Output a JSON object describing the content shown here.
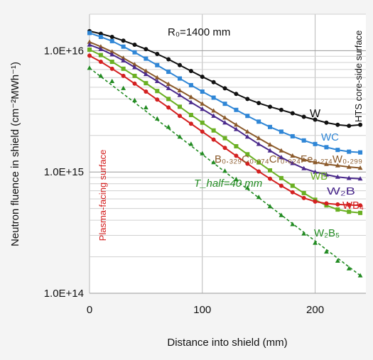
{
  "chart_data": {
    "type": "line",
    "xlabel": "Distance into shield (mm)",
    "ylabel": "Neutron fluence in shield (cm⁻²MWh⁻¹)",
    "xlim": [
      0,
      245
    ],
    "ylim": [
      100000000000000.0,
      2e+16
    ],
    "yscale": "log",
    "x_ticks": [
      0,
      100,
      200
    ],
    "y_ticks": [
      "1.0E+14",
      "1.0E+15",
      "1.0E+16"
    ],
    "grid": true,
    "annotations": {
      "radius_label": "R₀=1400 mm",
      "core_side_label": "HTS core-side surface",
      "plasma_side_label": "Plasma-facing surface",
      "thalf_label": "T_half=40 mm"
    },
    "x": [
      0,
      10,
      20,
      30,
      40,
      50,
      60,
      70,
      80,
      90,
      100,
      110,
      120,
      130,
      140,
      150,
      160,
      170,
      180,
      190,
      200,
      210,
      220,
      230,
      240
    ],
    "series": [
      {
        "name": "W",
        "color": "#111111",
        "marker": "circle",
        "values": [
          1.45e+16,
          1.38e+16,
          1.3e+16,
          1.21e+16,
          1.12e+16,
          1.03e+16,
          9400000000000000.0,
          8500000000000000.0,
          7600000000000000.0,
          6800000000000000.0,
          6100000000000000.0,
          5500000000000000.0,
          4900000000000000.0,
          4400000000000000.0,
          4000000000000000.0,
          3700000000000000.0,
          3450000000000000.0,
          3250000000000000.0,
          3050000000000000.0,
          2850000000000000.0,
          2700000000000000.0,
          2550000000000000.0,
          2450000000000000.0,
          2400000000000000.0,
          2450000000000000.0
        ]
      },
      {
        "name": "WC",
        "color": "#2f86d6",
        "marker": "square",
        "values": [
          1.4e+16,
          1.3e+16,
          1.2e+16,
          1.08e+16,
          9700000000000000.0,
          8600000000000000.0,
          7600000000000000.0,
          6700000000000000.0,
          5900000000000000.0,
          5200000000000000.0,
          4600000000000000.0,
          4100000000000000.0,
          3650000000000000.0,
          3250000000000000.0,
          2900000000000000.0,
          2600000000000000.0,
          2350000000000000.0,
          2150000000000000.0,
          1970000000000000.0,
          1820000000000000.0,
          1700000000000000.0,
          1600000000000000.0,
          1520000000000000.0,
          1470000000000000.0,
          1450000000000000.0
        ]
      },
      {
        "name": "B₀.₃₂₉C₀.₀₇₄Cr₀.₀₂₄Fe₀.₂₇₄W₀.₂₉₉",
        "color": "#8b5a2b",
        "marker": "triangle",
        "values": [
          1.18e+16,
          1.08e+16,
          9800000000000000.0,
          8700000000000000.0,
          7700000000000000.0,
          6800000000000000.0,
          6000000000000000.0,
          5300000000000000.0,
          4700000000000000.0,
          4150000000000000.0,
          3650000000000000.0,
          3200000000000000.0,
          2800000000000000.0,
          2450000000000000.0,
          2150000000000000.0,
          1900000000000000.0,
          1680000000000000.0,
          1500000000000000.0,
          1360000000000000.0,
          1260000000000000.0,
          1200000000000000.0,
          1160000000000000.0,
          1130000000000000.0,
          1100000000000000.0,
          1080000000000000.0
        ]
      },
      {
        "name": "W₂B",
        "color": "#4b2a8c",
        "marker": "triangle",
        "values": [
          1.12e+16,
          1.03e+16,
          9300000000000000.0,
          8300000000000000.0,
          7300000000000000.0,
          6400000000000000.0,
          5600000000000000.0,
          4900000000000000.0,
          4300000000000000.0,
          3750000000000000.0,
          3300000000000000.0,
          2900000000000000.0,
          2550000000000000.0,
          2250000000000000.0,
          1950000000000000.0,
          1700000000000000.0,
          1500000000000000.0,
          1320000000000000.0,
          1180000000000000.0,
          1070000000000000.0,
          1000000000000000.0,
          950000000000000.0,
          910000000000000.0,
          890000000000000.0,
          880000000000000.0
        ]
      },
      {
        "name": "WB",
        "color": "#6ab023",
        "marker": "square",
        "values": [
          1.02e+16,
          9200000000000000.0,
          8100000000000000.0,
          7100000000000000.0,
          6200000000000000.0,
          5400000000000000.0,
          4650000000000000.0,
          4000000000000000.0,
          3450000000000000.0,
          2950000000000000.0,
          2550000000000000.0,
          2200000000000000.0,
          1900000000000000.0,
          1630000000000000.0,
          1400000000000000.0,
          1200000000000000.0,
          1030000000000000.0,
          890000000000000.0,
          770000000000000.0,
          670000000000000.0,
          590000000000000.0,
          530000000000000.0,
          490000000000000.0,
          470000000000000.0,
          460000000000000.0
        ]
      },
      {
        "name": "WB₄",
        "color": "#d42020",
        "marker": "circle",
        "values": [
          9100000000000000.0,
          8100000000000000.0,
          7100000000000000.0,
          6200000000000000.0,
          5350000000000000.0,
          4600000000000000.0,
          3950000000000000.0,
          3400000000000000.0,
          2900000000000000.0,
          2500000000000000.0,
          2150000000000000.0,
          1850000000000000.0,
          1580000000000000.0,
          1360000000000000.0,
          1170000000000000.0,
          1010000000000000.0,
          880000000000000.0,
          770000000000000.0,
          680000000000000.0,
          610000000000000.0,
          570000000000000.0,
          550000000000000.0,
          540000000000000.0,
          535000000000000.0,
          530000000000000.0
        ]
      },
      {
        "name": "W₂B₅",
        "color": "#228b22",
        "marker": "triangle",
        "dashed": true,
        "values": [
          7200000000000000.0,
          6200000000000000.0,
          5600000000000000.0,
          4900000000000000.0,
          3900000000000000.0,
          3400000000000000.0,
          2750000000000000.0,
          2350000000000000.0,
          1950000000000000.0,
          1700000000000000.0,
          1420000000000000.0,
          1200000000000000.0,
          1020000000000000.0,
          870000000000000.0,
          740000000000000.0,
          620000000000000.0,
          520000000000000.0,
          440000000000000.0,
          370000000000000.0,
          310000000000000.0,
          260000000000000.0,
          220000000000000.0,
          185000000000000.0,
          160000000000000.0,
          140000000000000.0
        ]
      }
    ]
  }
}
